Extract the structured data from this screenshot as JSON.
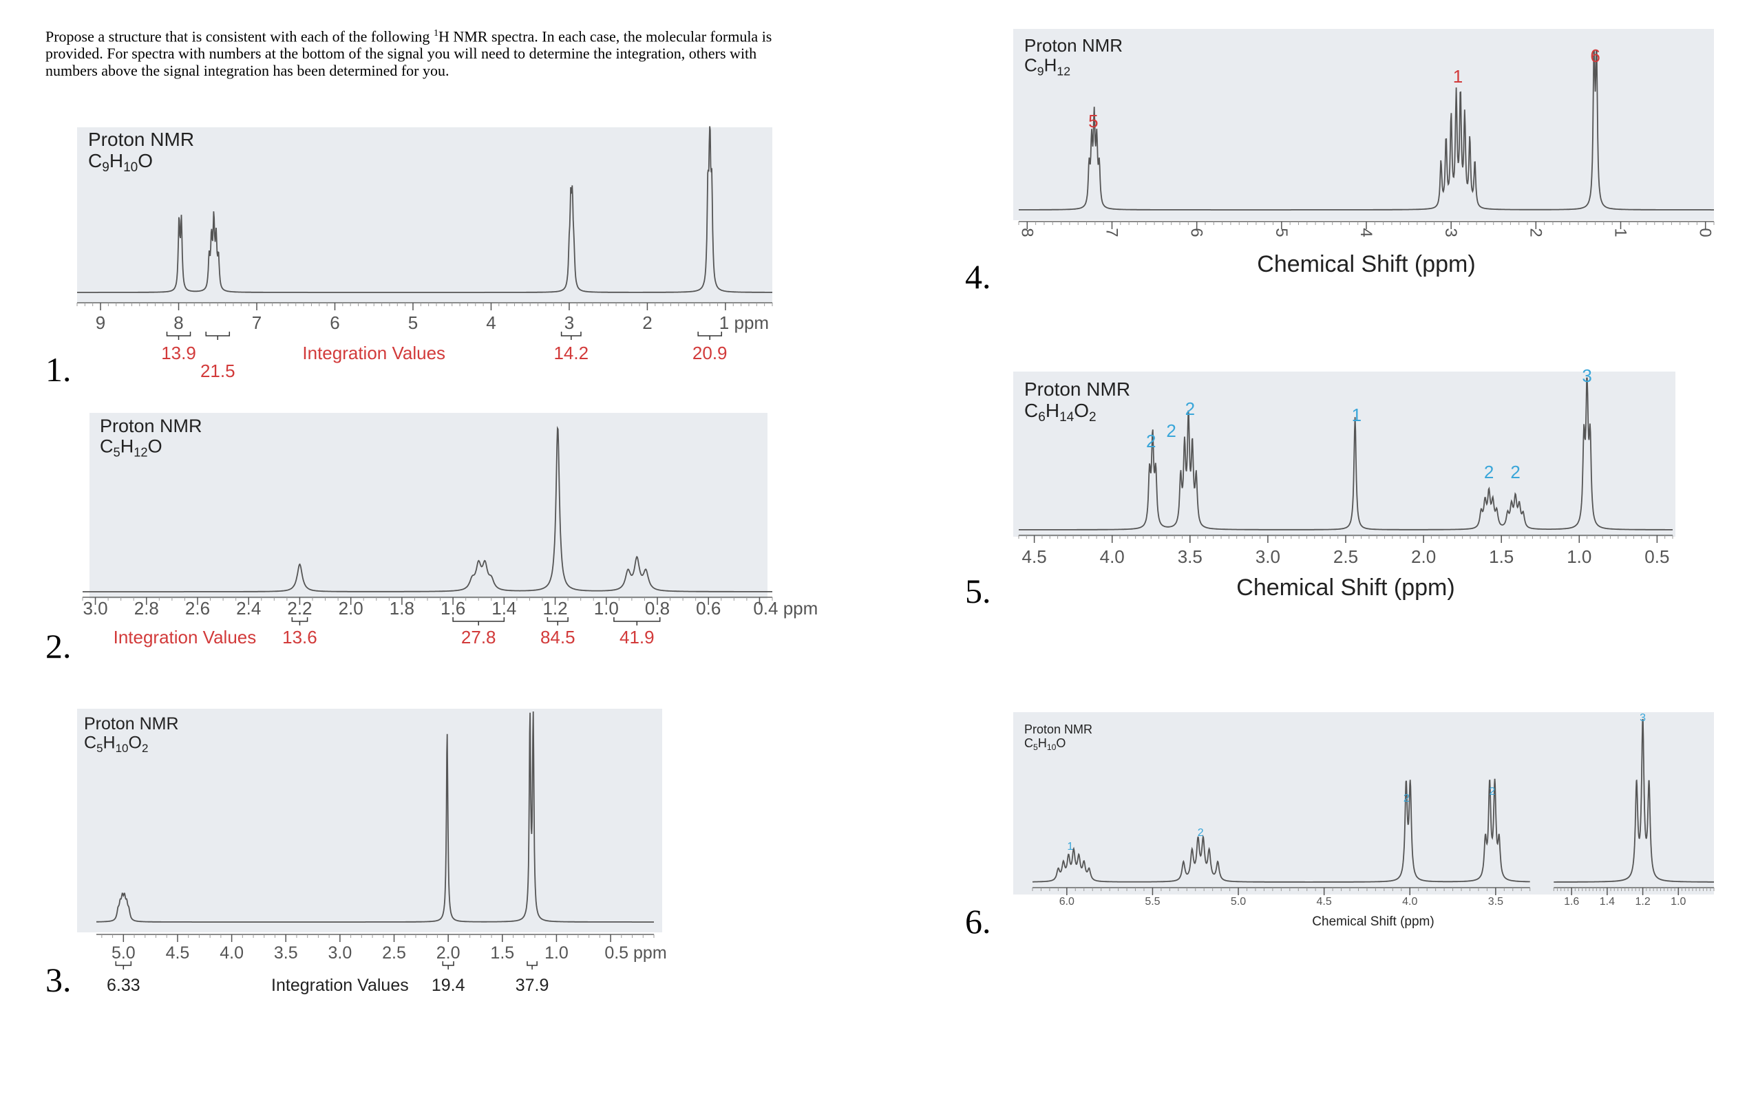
{
  "instructions": {
    "part1": "Propose a structure that is consistent with each of the following ",
    "sup": "1",
    "part2": "H NMR spectra. In each case, the molecular formula is provided. For spectra with numbers at the bottom of the signal you will need to determine the integration, others with numbers above the signal integration has been determined for you."
  },
  "question_numbers": [
    "1.",
    "2.",
    "3.",
    "4.",
    "5.",
    "6."
  ],
  "colors": {
    "panel": "#e9ecf0",
    "trace": "#555555",
    "red": "#d23a3a",
    "blue": "#3aa6d9",
    "black": "#111111"
  },
  "chart_data": [
    {
      "type": "line",
      "id": "spectrum-1",
      "title": "Proton NMR",
      "formula": "C9H10O",
      "formula_parts": [
        [
          "C",
          ""
        ],
        [
          "9",
          "sub"
        ],
        [
          "H",
          ""
        ],
        [
          "10",
          "sub"
        ],
        [
          "O",
          ""
        ]
      ],
      "xlim": [
        9.3,
        0.4
      ],
      "ticks": [
        9,
        8,
        7,
        6,
        5,
        4,
        3,
        2,
        1
      ],
      "tick_labels": [
        "9",
        "8",
        "7",
        "6",
        "5",
        "4",
        "3",
        "2",
        "1 ppm"
      ],
      "integration_caption": "Integration Values",
      "integration_caption_ppm": 5.5,
      "integrations": [
        {
          "label": "13.9",
          "from": 8.15,
          "to": 7.85
        },
        {
          "label": "21.5",
          "from": 7.65,
          "to": 7.35
        },
        {
          "label": "14.2",
          "from": 3.1,
          "to": 2.85
        },
        {
          "label": "20.9",
          "from": 1.35,
          "to": 1.05
        }
      ],
      "peaks": [
        {
          "ppm": 7.98,
          "height": 0.43,
          "width": 0.012,
          "mult": [
            -0.015,
            0.015
          ]
        },
        {
          "ppm": 7.55,
          "height": 0.42,
          "width": 0.012,
          "mult": [
            -0.06,
            -0.03,
            0.0,
            0.03,
            0.06
          ]
        },
        {
          "ppm": 2.97,
          "height": 0.48,
          "width": 0.012,
          "mult": [
            -0.03,
            -0.01,
            0.01,
            0.03
          ]
        },
        {
          "ppm": 1.2,
          "height": 0.95,
          "width": 0.012,
          "mult": [
            -0.025,
            0.0,
            0.025
          ]
        }
      ]
    },
    {
      "type": "line",
      "id": "spectrum-2",
      "title": "Proton NMR",
      "formula": "C5H12O",
      "formula_parts": [
        [
          "C",
          ""
        ],
        [
          "5",
          "sub"
        ],
        [
          "H",
          ""
        ],
        [
          "12",
          "sub"
        ],
        [
          "O",
          ""
        ]
      ],
      "xlim": [
        3.05,
        0.35
      ],
      "ticks": [
        3.0,
        2.8,
        2.6,
        2.4,
        2.2,
        2.0,
        1.8,
        1.6,
        1.4,
        1.2,
        1.0,
        0.8,
        0.6,
        0.4
      ],
      "tick_labels": [
        "3.0",
        "2.8",
        "2.6",
        "2.4",
        "2.2",
        "2.0",
        "1.8",
        "1.6",
        "1.4",
        "1.2",
        "1.0",
        "0.8",
        "0.6",
        "0.4 ppm"
      ],
      "integration_caption": "Integration Values",
      "integration_caption_ppm": 2.65,
      "integrations": [
        {
          "label": "13.6",
          "from": 2.23,
          "to": 2.17
        },
        {
          "label": "27.8",
          "from": 1.6,
          "to": 1.4
        },
        {
          "label": "84.5",
          "from": 1.23,
          "to": 1.15
        },
        {
          "label": "41.9",
          "from": 0.97,
          "to": 0.79
        }
      ],
      "peaks": [
        {
          "ppm": 2.2,
          "height": 0.16,
          "width": 0.012,
          "mult": [
            0
          ]
        },
        {
          "ppm": 1.5,
          "height": 0.14,
          "width": 0.012,
          "mult": [
            -0.05,
            -0.025,
            0.0,
            0.025
          ]
        },
        {
          "ppm": 1.19,
          "height": 0.96,
          "width": 0.008,
          "mult": [
            0
          ]
        },
        {
          "ppm": 0.88,
          "height": 0.18,
          "width": 0.012,
          "mult": [
            -0.035,
            0.0,
            0.035
          ]
        }
      ]
    },
    {
      "type": "line",
      "id": "spectrum-3",
      "title": "Proton NMR",
      "formula": "C5H10O2",
      "formula_parts": [
        [
          "C",
          ""
        ],
        [
          "5",
          "sub"
        ],
        [
          "H",
          ""
        ],
        [
          "10",
          "sub"
        ],
        [
          "O",
          ""
        ],
        [
          "2",
          "sub"
        ]
      ],
      "xlim": [
        5.25,
        0.1
      ],
      "ticks": [
        5.0,
        4.5,
        4.0,
        3.5,
        3.0,
        2.5,
        2.0,
        1.5,
        1.0,
        0.5
      ],
      "tick_labels": [
        "5.0",
        "4.5",
        "4.0",
        "3.5",
        "3.0",
        "2.5",
        "2.0",
        "1.5",
        "1.0",
        "0.5 ppm"
      ],
      "integration_caption": "Integration Values",
      "integration_caption_ppm": 3.0,
      "integrations": [
        {
          "label": "6.33",
          "from": 5.07,
          "to": 4.93
        },
        {
          "label": "19.4",
          "from": 2.05,
          "to": 1.95
        },
        {
          "label": "37.9",
          "from": 1.27,
          "to": 1.18
        }
      ],
      "peaks": [
        {
          "ppm": 5.0,
          "height": 0.1,
          "width": 0.012,
          "mult": [
            -0.05,
            -0.03,
            -0.01,
            0.01,
            0.03,
            0.05
          ]
        },
        {
          "ppm": 2.01,
          "height": 0.92,
          "width": 0.008,
          "mult": [
            0
          ]
        },
        {
          "ppm": 1.23,
          "height": 0.96,
          "width": 0.008,
          "mult": [
            -0.015,
            0.015
          ]
        }
      ]
    },
    {
      "type": "line",
      "id": "spectrum-4",
      "title": "Proton NMR",
      "formula": "C9H12",
      "formula_parts": [
        [
          "C",
          ""
        ],
        [
          "9",
          "sub"
        ],
        [
          "H",
          ""
        ],
        [
          "12",
          "sub"
        ]
      ],
      "xlim": [
        8.1,
        -0.1
      ],
      "ticks": [
        8,
        7,
        6,
        5,
        4,
        3,
        2,
        1,
        0
      ],
      "tick_labels": [
        "8",
        "7",
        "6",
        "5",
        "4",
        "3",
        "2",
        "1",
        "0"
      ],
      "rotated_ticks": true,
      "axis_title": "Chemical Shift (ppm)",
      "peak_labels": [
        {
          "label": "5",
          "ppm": 7.22,
          "color": "red"
        },
        {
          "label": "1",
          "ppm": 2.92,
          "color": "red"
        },
        {
          "label": "6",
          "ppm": 1.3,
          "color": "red"
        }
      ],
      "peaks": [
        {
          "ppm": 7.22,
          "height": 0.55,
          "width": 0.012,
          "mult": [
            -0.07,
            -0.04,
            -0.01,
            0.02,
            0.05
          ]
        },
        {
          "ppm": 2.92,
          "height": 0.8,
          "width": 0.012,
          "mult": [
            -0.2,
            -0.14,
            -0.08,
            -0.03,
            0.02,
            0.08,
            0.14,
            0.2
          ]
        },
        {
          "ppm": 1.3,
          "height": 1.0,
          "width": 0.012,
          "mult": [
            -0.015,
            0.015
          ]
        }
      ]
    },
    {
      "type": "line",
      "id": "spectrum-5",
      "title": "Proton NMR",
      "formula": "C6H14O2",
      "formula_parts": [
        [
          "C",
          ""
        ],
        [
          "6",
          "sub"
        ],
        [
          "H",
          ""
        ],
        [
          "14",
          "sub"
        ],
        [
          "O",
          ""
        ],
        [
          "2",
          "sub"
        ]
      ],
      "xlim": [
        4.6,
        0.4
      ],
      "ticks": [
        4.5,
        4.0,
        3.5,
        3.0,
        2.5,
        2.0,
        1.5,
        1.0,
        0.5
      ],
      "tick_labels": [
        "4.5",
        "4.0",
        "3.5",
        "3.0",
        "2.5",
        "2.0",
        "1.5",
        "1.0",
        "0.5"
      ],
      "axis_title": "Chemical Shift (ppm)",
      "peak_labels": [
        {
          "label": "2",
          "ppm": 3.75,
          "color": "blue",
          "level": 0
        },
        {
          "label": "2",
          "ppm": 3.62,
          "color": "blue",
          "level": 1
        },
        {
          "label": "2",
          "ppm": 3.5,
          "color": "blue",
          "level": 2
        },
        {
          "label": "1",
          "ppm": 2.43,
          "color": "blue",
          "level": 1
        },
        {
          "label": "2",
          "ppm": 1.58,
          "color": "blue",
          "level": 0
        },
        {
          "label": "2",
          "ppm": 1.41,
          "color": "blue",
          "level": 0
        },
        {
          "label": "3",
          "ppm": 0.95,
          "color": "blue",
          "level": 3
        }
      ],
      "peaks": [
        {
          "ppm": 3.74,
          "height": 0.6,
          "width": 0.008,
          "mult": [
            -0.02,
            0.0,
            0.02
          ]
        },
        {
          "ppm": 3.52,
          "height": 0.72,
          "width": 0.008,
          "mult": [
            -0.06,
            -0.035,
            -0.01,
            0.015,
            0.04
          ]
        },
        {
          "ppm": 2.44,
          "height": 0.78,
          "width": 0.008,
          "mult": [
            0
          ]
        },
        {
          "ppm": 1.58,
          "height": 0.23,
          "width": 0.01,
          "mult": [
            -0.05,
            -0.025,
            0.0,
            0.025,
            0.05
          ]
        },
        {
          "ppm": 1.41,
          "height": 0.2,
          "width": 0.01,
          "mult": [
            -0.05,
            -0.025,
            0.0,
            0.025,
            0.05
          ]
        },
        {
          "ppm": 0.95,
          "height": 0.96,
          "width": 0.008,
          "mult": [
            -0.02,
            0.0,
            0.02
          ]
        }
      ]
    },
    {
      "type": "line",
      "id": "spectrum-6",
      "title": "Proton NMR",
      "formula": "C5H10O",
      "formula_parts": [
        [
          "C",
          ""
        ],
        [
          "5",
          "sub"
        ],
        [
          "H",
          ""
        ],
        [
          "10",
          "sub"
        ],
        [
          "O",
          ""
        ]
      ],
      "axis_title": "Chemical Shift (ppm)",
      "segments": [
        {
          "xlim": [
            6.2,
            3.3
          ],
          "ticks": [
            6.0,
            5.5,
            5.0,
            4.5,
            4.0,
            3.5
          ],
          "tick_labels": [
            "6.0",
            "5.5",
            "5.0",
            "4.5",
            "4.0",
            "3.5"
          ]
        },
        {
          "xlim": [
            1.7,
            0.8
          ],
          "ticks": [
            1.6,
            1.4,
            1.2,
            1.0
          ],
          "tick_labels": [
            "1.6",
            "1.4",
            "1.2",
            "1.0"
          ]
        }
      ],
      "peak_labels": [
        {
          "label": "1",
          "ppm": 5.98,
          "color": "blue"
        },
        {
          "label": "2",
          "ppm": 5.22,
          "color": "blue"
        },
        {
          "label": "2",
          "ppm": 4.02,
          "color": "blue"
        },
        {
          "label": "2",
          "ppm": 3.52,
          "color": "blue"
        },
        {
          "label": "3",
          "ppm": 1.2,
          "color": "blue"
        }
      ],
      "peaks": [
        {
          "ppm": 5.95,
          "height": 0.18,
          "width": 0.01,
          "mult": [
            -0.08,
            -0.05,
            -0.02,
            0.01,
            0.04,
            0.07,
            0.1
          ]
        },
        {
          "ppm": 5.22,
          "height": 0.28,
          "width": 0.01,
          "mult": [
            -0.1,
            -0.05,
            -0.015,
            0.015,
            0.05,
            0.1
          ]
        },
        {
          "ppm": 4.01,
          "height": 0.6,
          "width": 0.008,
          "mult": [
            -0.012,
            0.012
          ]
        },
        {
          "ppm": 3.52,
          "height": 0.6,
          "width": 0.008,
          "mult": [
            -0.04,
            -0.015,
            0.015,
            0.04
          ]
        },
        {
          "ppm": 1.2,
          "height": 1.0,
          "width": 0.008,
          "mult": [
            -0.035,
            0.0,
            0.035
          ]
        }
      ]
    }
  ]
}
